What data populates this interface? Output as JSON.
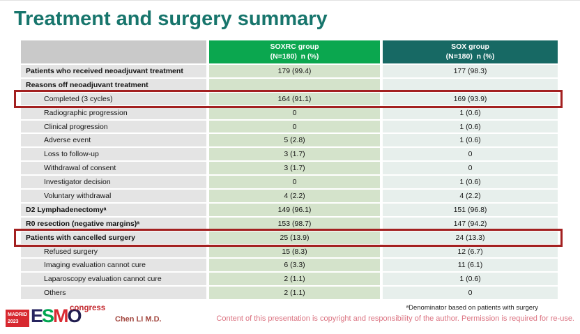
{
  "slide": {
    "title": "Treatment and surgery summary",
    "footnote": "ᵃDenominator based on patients with surgery",
    "copyright": "Content of this presentation is copyright and responsibility of the author. Permission is required for re-use.",
    "presenter": "Chen LI M.D."
  },
  "logo": {
    "badge_line1": "MADRID",
    "badge_line2": "2023",
    "congress": "congress",
    "letters": [
      {
        "char": "E",
        "color": "#27255f"
      },
      {
        "char": "S",
        "color": "#00a651"
      },
      {
        "char": "M",
        "color": "#da2a32"
      },
      {
        "char": "O",
        "color": "#201d4f"
      }
    ]
  },
  "colors": {
    "title": "#17756c",
    "soxrc_header": "#0ba74f",
    "sox_header": "#176964",
    "highlight_border": "#a32020",
    "soxrc_cell": "#d4e3cb",
    "sox_cell": "#e7efec",
    "label_cell": "#e4e4e4"
  },
  "table": {
    "header": {
      "soxrc": {
        "line1": "SOXRC group",
        "line2": "(N=180)  n (%)"
      },
      "sox": {
        "line1": "SOX group",
        "line2": "(N=180)  n (%)"
      }
    },
    "rows": [
      {
        "label": "Patients who received neoadjuvant treatment",
        "soxrc": "179 (99.4)",
        "sox": "177 (98.3)",
        "bold": true,
        "indent": false,
        "highlight": false
      },
      {
        "label": "Reasons off neoadjuvant treatment",
        "soxrc": "",
        "sox": "",
        "bold": true,
        "indent": false,
        "highlight": false
      },
      {
        "label": "Completed (3 cycles)",
        "soxrc": "164 (91.1)",
        "sox": "169 (93.9)",
        "bold": false,
        "indent": true,
        "highlight": true
      },
      {
        "label": "Radiographic progression",
        "soxrc": "0",
        "sox": "1 (0.6)",
        "bold": false,
        "indent": true,
        "highlight": false
      },
      {
        "label": "Clinical progression",
        "soxrc": "0",
        "sox": "1 (0.6)",
        "bold": false,
        "indent": true,
        "highlight": false
      },
      {
        "label": "Adverse event",
        "soxrc": "5 (2.8)",
        "sox": "1 (0.6)",
        "bold": false,
        "indent": true,
        "highlight": false
      },
      {
        "label": "Loss to follow-up",
        "soxrc": "3 (1.7)",
        "sox": "0",
        "bold": false,
        "indent": true,
        "highlight": false
      },
      {
        "label": "Withdrawal of consent",
        "soxrc": "3 (1.7)",
        "sox": "0",
        "bold": false,
        "indent": true,
        "highlight": false
      },
      {
        "label": "Investigator decision",
        "soxrc": "0",
        "sox": "1 (0.6)",
        "bold": false,
        "indent": true,
        "highlight": false
      },
      {
        "label": "Voluntary withdrawal",
        "soxrc": "4 (2.2)",
        "sox": "4 (2.2)",
        "bold": false,
        "indent": true,
        "highlight": false
      },
      {
        "label": "D2 Lymphadenectomyᵃ",
        "soxrc": "149 (96.1)",
        "sox": "151 (96.8)",
        "bold": true,
        "indent": false,
        "highlight": false
      },
      {
        "label": "R0 resection (negative margins)ᵃ",
        "soxrc": "153 (98.7)",
        "sox": "147 (94.2)",
        "bold": true,
        "indent": false,
        "highlight": false
      },
      {
        "label": "Patients with cancelled surgery",
        "soxrc": "25 (13.9)",
        "sox": "24 (13.3)",
        "bold": true,
        "indent": false,
        "highlight": true
      },
      {
        "label": "Refused surgery",
        "soxrc": "15 (8.3)",
        "sox": "12 (6.7)",
        "bold": false,
        "indent": true,
        "highlight": false
      },
      {
        "label": "Imaging evaluation cannot cure",
        "soxrc": "6 (3.3)",
        "sox": "11 (6.1)",
        "bold": false,
        "indent": true,
        "highlight": false
      },
      {
        "label": "Laparoscopy evaluation cannot cure",
        "soxrc": "2 (1.1)",
        "sox": "1 (0.6)",
        "bold": false,
        "indent": true,
        "highlight": false
      },
      {
        "label": "Others",
        "soxrc": "2 (1.1)",
        "sox": "0",
        "bold": false,
        "indent": true,
        "highlight": false
      }
    ]
  }
}
